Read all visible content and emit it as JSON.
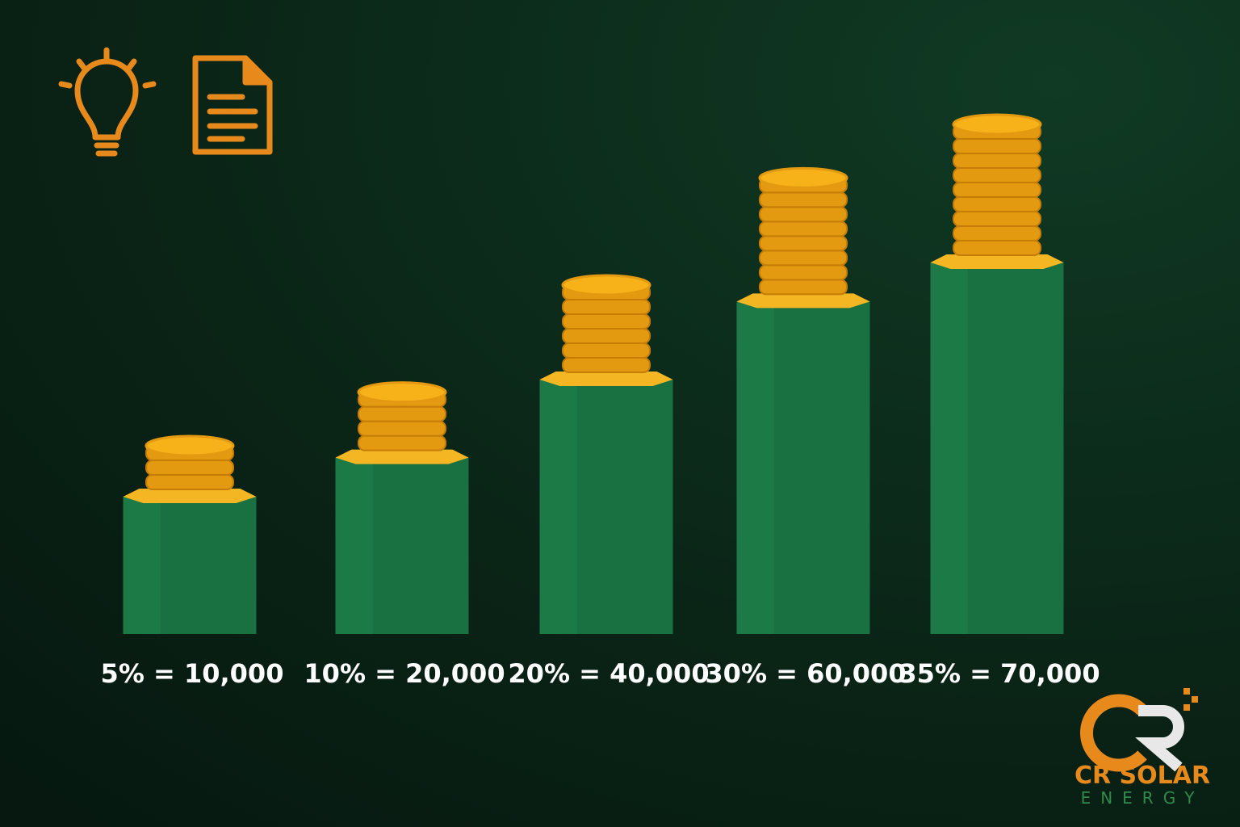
{
  "chart_data": {
    "type": "bar",
    "values": [
      10000,
      20000,
      40000,
      60000,
      70000
    ],
    "value_labels": [
      "5% = 10,000",
      "10% = 20,000",
      "20% = 40,000",
      "30% = 60,000",
      "35% = 70,000"
    ],
    "color": "#1c7a47",
    "cap_color": "#f5b623",
    "coin_color": "#f7b21a"
  },
  "brand": {
    "name": "CR SOLAR",
    "tagline": "ENERGY"
  }
}
